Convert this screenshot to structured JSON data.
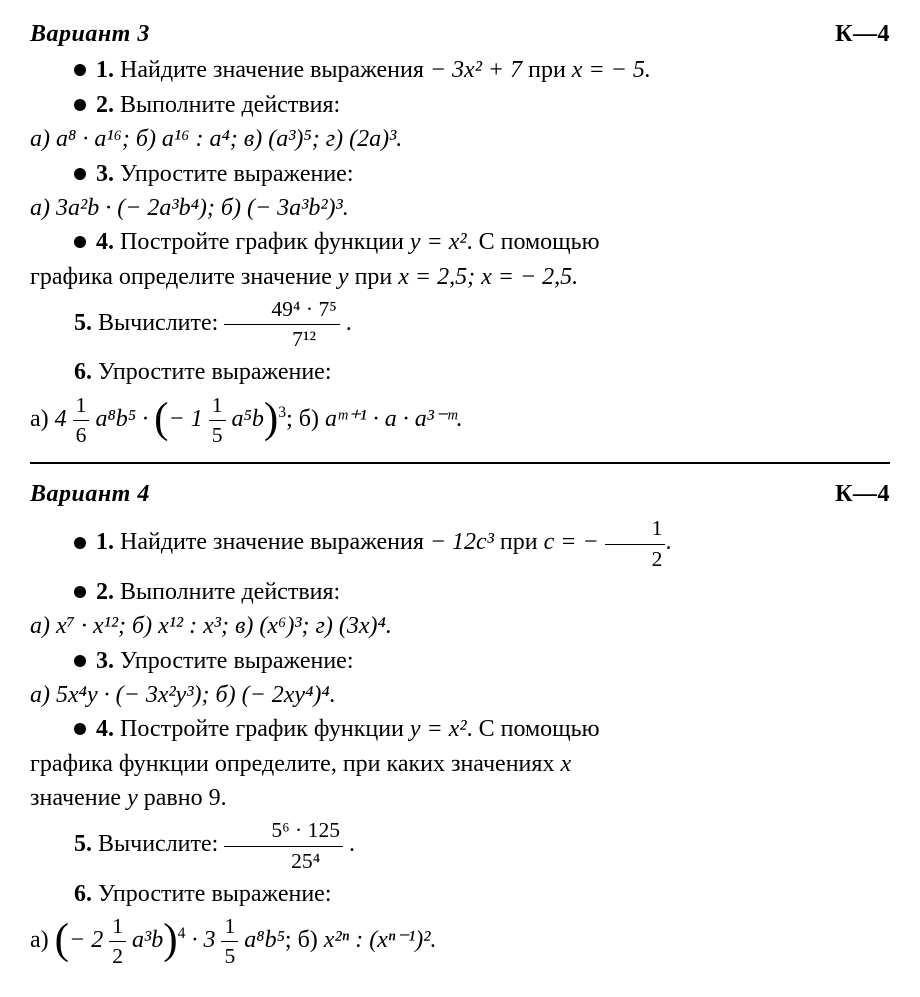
{
  "v3": {
    "title": "Вариант 3",
    "code": "К—4",
    "t1": {
      "n": "1.",
      "txt1": "Найдите значение выражения ",
      "expr": "− 3x² + 7",
      "txt2": " при ",
      "cond": "x = − 5."
    },
    "t2": {
      "n": "2.",
      "txt": "Выполните действия:",
      "opts": "а) a⁸ · a¹⁶;  б)   a¹⁶ : a⁴;  в) (a³)⁵;  г) (2a)³."
    },
    "t3": {
      "n": "3.",
      "txt": "Упростите выражение:",
      "opts": "а) 3a²b · (− 2a³b⁴);  б) (− 3a³b²)³."
    },
    "t4": {
      "n": "4.",
      "l1a": "Постройте график функции ",
      "l1b": "y = x²",
      "l1c": ". С помощью",
      "l2a": "графика определите значение ",
      "l2b": "y",
      "l2c": " при ",
      "l2d": "x = 2,5;  x = − 2,5."
    },
    "t5": {
      "n": "5.",
      "txt": "Вычислите:  ",
      "fnum": "49⁴ · 7⁵",
      "fden": "7¹²"
    },
    "t6": {
      "n": "6.",
      "txt": "Упростите выражение:",
      "aA": "а) ",
      "mix1a": "1",
      "mix1b": "6",
      "coef1": "4 ",
      "mid1": " a⁸b⁵ · ",
      "mix2a": "1",
      "mix2b": "5",
      "coef2": "− 1 ",
      "mid2": " a⁵b",
      "pow": "3",
      "aB": ";  б) ",
      "bexpr": "aᵐ⁺¹ · a · a³⁻ᵐ.",
      "tail": ""
    }
  },
  "v4": {
    "title": "Вариант 4",
    "code": "К—4",
    "t1": {
      "n": "1.",
      "txt1": "Найдите значение выражения ",
      "expr": "− 12c³",
      "txt2": " при ",
      "condA": "c = − ",
      "fnum": "1",
      "fden": "2",
      "condB": "."
    },
    "t2": {
      "n": "2.",
      "txt": "Выполните действия:",
      "opts": "а) x⁷ · x¹²;  б) x¹² : x³;  в) (x⁶)³;  г) (3x)⁴."
    },
    "t3": {
      "n": "3.",
      "txt": "Упростите выражение:",
      "opts": "а) 5x⁴y · (− 3x²y³);  б) (− 2xy⁴)⁴."
    },
    "t4": {
      "n": "4.",
      "l1a": "Постройте график функции ",
      "l1b": "y = x²",
      "l1c": ". С помощью",
      "l2": "графика функции определите, при каких значениях ",
      "l2x": "x",
      "l3a": "значение ",
      "l3b": "y",
      "l3c": " равно 9."
    },
    "t5": {
      "n": "5.",
      "txt": "Вычислите:  ",
      "fnum": "5⁶ · 125",
      "fden": "25⁴"
    },
    "t6": {
      "n": "6.",
      "txt": "Упростите выражение:",
      "aA": "а) ",
      "mix1a": "1",
      "mix1b": "2",
      "coef1": "− 2 ",
      "mid1": " a³b",
      "pow1": "4",
      "mid2": " · ",
      "mix2a": "1",
      "mix2b": "5",
      "coef2": "3 ",
      "mid3": " a⁸b⁵",
      "aB": ";  б) ",
      "bexpr": "x²ⁿ : (xⁿ⁻¹)².",
      "tail": ""
    }
  }
}
